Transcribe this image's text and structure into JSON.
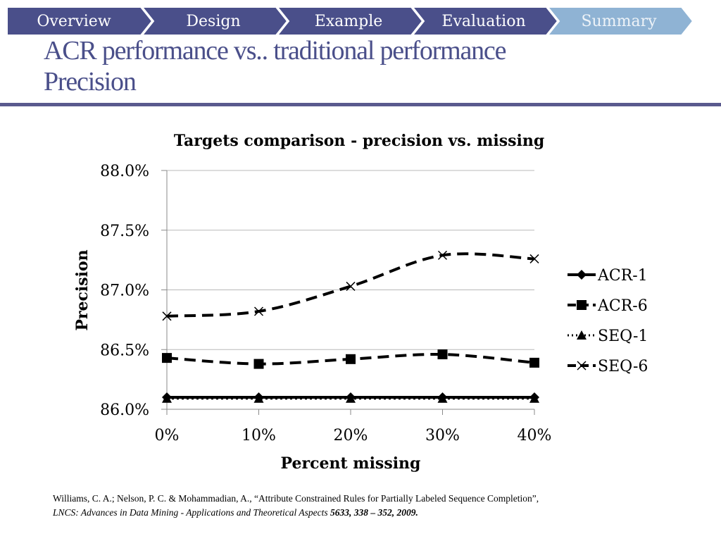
{
  "nav": {
    "tabs": [
      {
        "label": "Overview",
        "active": false
      },
      {
        "label": "Design",
        "active": false
      },
      {
        "label": "Example",
        "active": false
      },
      {
        "label": "Evaluation",
        "active": false
      },
      {
        "label": "Summary",
        "active": true
      }
    ],
    "color": "#4a4f8a",
    "active_color": "#8fb3d4"
  },
  "slide": {
    "title_line1": "ACR performance vs.. traditional performance",
    "title_line2": "Precision",
    "title_color": "#4a4f8a"
  },
  "chart_data": {
    "type": "line",
    "title": "Targets comparison - precision vs.  missing",
    "xlabel": "Percent missing",
    "ylabel": "Precision",
    "categories": [
      "0%",
      "10%",
      "20%",
      "30%",
      "40%"
    ],
    "ylim": [
      0.86,
      0.88
    ],
    "yticks": [
      "86.0%",
      "86.5%",
      "87.0%",
      "87.5%",
      "88.0%"
    ],
    "grid": "horizontal",
    "legend_position": "right",
    "series": [
      {
        "name": "ACR-1",
        "values": [
          0.861,
          0.861,
          0.861,
          0.861,
          0.861
        ],
        "marker": "diamond",
        "line": "solid"
      },
      {
        "name": "ACR-6",
        "values": [
          0.8643,
          0.8638,
          0.8642,
          0.8646,
          0.8639
        ],
        "marker": "square",
        "line": "dashed"
      },
      {
        "name": "SEQ-1",
        "values": [
          0.8609,
          0.8609,
          0.8609,
          0.8609,
          0.8609
        ],
        "marker": "triangle",
        "line": "dotted"
      },
      {
        "name": "SEQ-6",
        "values": [
          0.8678,
          0.8682,
          0.8703,
          0.8729,
          0.8726
        ],
        "marker": "x",
        "line": "dashed"
      }
    ]
  },
  "citation": {
    "line1": "Williams, C. A.; Nelson, P. C. & Mohammadian, A., “Attribute Constrained Rules for Partially Labeled Sequence Completion”,",
    "line2_italic": "LNCS: Advances in Data Mining - Applications and Theoretical Aspects",
    "line2_volume": "5633, 338 – 352, 2009."
  }
}
